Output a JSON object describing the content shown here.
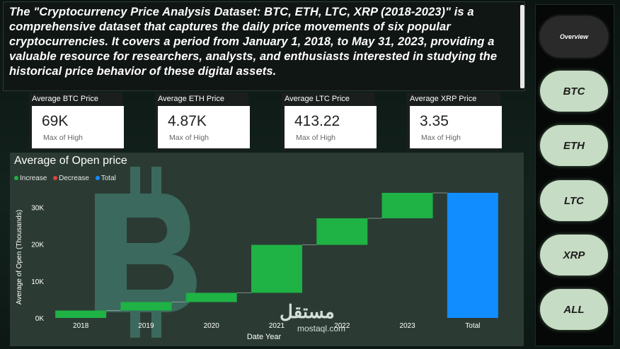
{
  "description": "The \"Cryptocurrency Price Analysis Dataset: BTC, ETH, LTC, XRP (2018-2023)\" is a comprehensive dataset that captures the daily price movements of six popular cryptocurrencies. It covers a period from January 1, 2018, to May 31, 2023, providing a valuable resource for researchers, analysts, and enthusiasts interested in studying the historical price behavior of these digital assets.",
  "cards": [
    {
      "title": "Average BTC Price",
      "value": "69K",
      "sub": "Max of High"
    },
    {
      "title": "Average ETH Price",
      "value": "4.87K",
      "sub": "Max of High"
    },
    {
      "title": "Average LTC Price",
      "value": "413.22",
      "sub": "Max of High"
    },
    {
      "title": "Average XRP Price",
      "value": "3.35",
      "sub": "Max of High"
    }
  ],
  "nav": [
    "Overview",
    "BTC",
    "ETH",
    "LTC",
    "XRP",
    "ALL"
  ],
  "watermark": {
    "main": "مستقل",
    "sub": "mostaql.com"
  },
  "colors": {
    "increase": "#1fb245",
    "decrease": "#d9453d",
    "total": "#118dff",
    "connector": "#9aa7a1"
  },
  "chart_data": {
    "type": "bar",
    "subtype": "waterfall",
    "title": "Average of Open price",
    "xlabel": "Date Year",
    "ylabel": "Average of Open (Thousands)",
    "legend": [
      "Increase",
      "Decrease",
      "Total"
    ],
    "legend_position": "top-left",
    "categories": [
      "2018",
      "2019",
      "2020",
      "2021",
      "2022",
      "2023",
      "Total"
    ],
    "start": [
      0,
      2000,
      4300,
      6800,
      19800,
      27000,
      0
    ],
    "end": [
      2000,
      4300,
      6800,
      19800,
      27000,
      33900,
      33900
    ],
    "kind": [
      "increase",
      "increase",
      "increase",
      "increase",
      "increase",
      "increase",
      "total"
    ],
    "ylim": [
      0,
      36000
    ],
    "yticks": [
      0,
      10000,
      20000,
      30000
    ],
    "ytick_labels": [
      "0K",
      "10K",
      "20K",
      "30K"
    ],
    "grid": false
  }
}
